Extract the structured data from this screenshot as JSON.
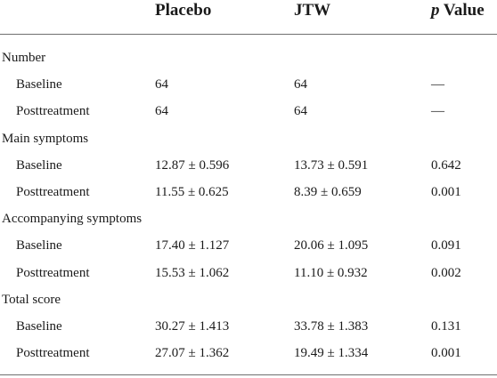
{
  "header": {
    "col1": "Placebo",
    "col2": "JTW",
    "col3_italic": "p",
    "col3_rest": " Value"
  },
  "rows": [
    {
      "label": "Number",
      "type": "group",
      "v1": "",
      "v2": "",
      "v3": ""
    },
    {
      "label": "Baseline",
      "type": "sub",
      "v1": "64",
      "v2": "64",
      "v3": "—"
    },
    {
      "label": "Posttreatment",
      "type": "sub",
      "v1": "64",
      "v2": "64",
      "v3": "—"
    },
    {
      "label": "Main symptoms",
      "type": "group",
      "v1": "",
      "v2": "",
      "v3": ""
    },
    {
      "label": "Baseline",
      "type": "sub",
      "v1": "12.87 ± 0.596",
      "v2": "13.73 ± 0.591",
      "v3": "0.642"
    },
    {
      "label": "Posttreatment",
      "type": "sub",
      "v1": "11.55 ± 0.625",
      "v2": "8.39 ± 0.659",
      "v3": "0.001"
    },
    {
      "label": "Accompanying symptoms",
      "type": "group",
      "v1": "",
      "v2": "",
      "v3": ""
    },
    {
      "label": "Baseline",
      "type": "sub",
      "v1": "17.40 ± 1.127",
      "v2": "20.06 ± 1.095",
      "v3": "0.091"
    },
    {
      "label": "Posttreatment",
      "type": "sub",
      "v1": "15.53 ± 1.062",
      "v2": "11.10 ± 0.932",
      "v3": "0.002"
    },
    {
      "label": "Total score",
      "type": "group",
      "v1": "",
      "v2": "",
      "v3": ""
    },
    {
      "label": "Baseline",
      "type": "sub",
      "v1": "30.27 ± 1.413",
      "v2": "33.78 ± 1.383",
      "v3": "0.131"
    },
    {
      "label": "Posttreatment",
      "type": "sub",
      "v1": "27.07 ± 1.362",
      "v2": "19.49 ± 1.334",
      "v3": "0.001"
    }
  ]
}
